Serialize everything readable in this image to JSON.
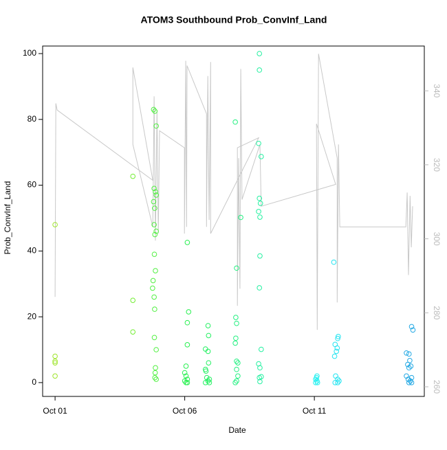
{
  "chart_data": {
    "type": "scatter",
    "title": "ATOM3 Southbound Prob_ConvInf_Land",
    "xlabel": "Date",
    "ylabel": "Prob_ConvInf_Land",
    "xlim": [
      0.52,
      15.24
    ],
    "xticks": [
      {
        "value": 1,
        "label": "Oct 01"
      },
      {
        "value": 6,
        "label": "Oct 06"
      },
      {
        "value": 11,
        "label": "Oct 11"
      }
    ],
    "ylim": [
      -4.2,
      102.3
    ],
    "yticks": [
      0,
      20,
      40,
      60,
      80,
      100
    ],
    "y2lim": [
      257.4,
      352.1
    ],
    "y2ticks": [
      260,
      280,
      300,
      320,
      340
    ],
    "series": [
      {
        "type": "line",
        "axis": "y2",
        "color": "#c8c8c8",
        "x": [
          1.0,
          1.03,
          1.08,
          4.77,
          4.0,
          4.0,
          4.77,
          4.82,
          4.87,
          4.93,
          4.98,
          5.03,
          5.99,
          5.99,
          6.04,
          6.07,
          6.09,
          6.84,
          6.84,
          6.89,
          6.94,
          7.0,
          7.0,
          8.85,
          8.03,
          8.03,
          8.08,
          8.13,
          8.16,
          8.21,
          8.9,
          8.95,
          11.82,
          11.08,
          11.11,
          11.16,
          11.88,
          11.88,
          11.93,
          11.98,
          14.53,
          14.58,
          14.63,
          14.69,
          14.74,
          14.79
        ],
        "values": [
          284.3,
          336.6,
          334.8,
          315.8,
          346.3,
          325.5,
          303.2,
          338.5,
          299.5,
          334.8,
          301.4,
          329.2,
          324.6,
          301.4,
          348.1,
          303.2,
          346.8,
          333.8,
          303.2,
          344.0,
          305.1,
          347.8,
          301.4,
          327.3,
          324.6,
          281.9,
          321.8,
          286.5,
          345.9,
          310.6,
          325.5,
          308.8,
          314.7,
          331.1,
          275.4,
          350.0,
          321.8,
          282.8,
          325.5,
          303.2,
          303.2,
          312.5,
          290.2,
          311.6,
          297.7,
          308.8
        ]
      },
      {
        "type": "scatter",
        "color": "#9ee52a",
        "x": [
          1.0,
          1.0,
          1.0,
          1.0,
          1.0
        ],
        "values": [
          48,
          8,
          6,
          6.5,
          2
        ]
      },
      {
        "type": "scatter",
        "color": "#72ee32",
        "x": [
          4.0,
          4.0,
          4.0
        ],
        "values": [
          62.7,
          25,
          15.4
        ]
      },
      {
        "type": "scatter",
        "color": "#50f040",
        "x": [
          4.8,
          4.85,
          4.9,
          4.82,
          4.87,
          4.9,
          4.8,
          4.84,
          4.82,
          4.9,
          4.85,
          4.83,
          4.87,
          4.78,
          4.76,
          4.82,
          4.84,
          4.83,
          4.9,
          4.87,
          4.86,
          4.85,
          4.9
        ],
        "values": [
          83,
          82.5,
          78,
          59,
          58,
          57,
          55,
          53,
          48,
          46,
          45,
          39,
          34,
          31,
          28.7,
          26,
          22.3,
          13.7,
          10,
          4.5,
          3,
          1.5,
          1
        ]
      },
      {
        "type": "scatter",
        "color": "#28f050",
        "x": [
          6.1,
          6.15,
          6.1,
          6.1,
          6.05,
          6.0,
          6.05,
          6.1,
          6.0,
          6.05,
          6.1
        ],
        "values": [
          42.6,
          21.5,
          18.2,
          11.5,
          5,
          3,
          2,
          1,
          0.5,
          0,
          0
        ]
      },
      {
        "type": "scatter",
        "color": "#22f060",
        "x": [
          6.9,
          6.92,
          6.8,
          6.9,
          6.92,
          6.8,
          6.82,
          6.85,
          6.95,
          6.9,
          6.8,
          6.95
        ],
        "values": [
          17.3,
          14.3,
          10.2,
          9.5,
          6,
          4,
          3.5,
          1.5,
          1,
          0.5,
          0,
          0
        ]
      },
      {
        "type": "scatter",
        "color": "#22f080",
        "x": [
          7.95,
          8.0,
          7.97,
          8.0,
          7.97,
          7.95,
          8.0,
          8.05,
          8.0,
          8.05,
          8.0,
          7.95,
          8.16
        ],
        "values": [
          79.2,
          34.8,
          19.8,
          18,
          13.5,
          12,
          6.5,
          6,
          4,
          2,
          0.5,
          0,
          50.2
        ]
      },
      {
        "type": "scatter",
        "color": "#22f0a0",
        "x": [
          8.88,
          8.88,
          8.85,
          8.95,
          8.88,
          8.92,
          8.85,
          8.9,
          8.9,
          8.88,
          8.95,
          8.85,
          8.9,
          8.95,
          8.88,
          8.9
        ],
        "values": [
          100,
          95,
          72.7,
          68.7,
          56,
          54.5,
          52,
          50.3,
          38.5,
          28.8,
          10.1,
          5.7,
          4.5,
          1.8,
          1.5,
          0.3
        ]
      },
      {
        "type": "scatter",
        "color": "#22f0f0",
        "x": [
          11.1,
          11.08,
          11.05,
          11.1,
          11.05,
          11.12
        ],
        "values": [
          2,
          1.5,
          1,
          0.5,
          0,
          0
        ]
      },
      {
        "type": "scatter",
        "color": "#22e4f0",
        "x": [
          11.75,
          11.92,
          11.9,
          11.8,
          11.88,
          11.85,
          11.78,
          11.82,
          11.9,
          11.95,
          11.8,
          11.9
        ],
        "values": [
          36.6,
          14,
          13.4,
          11.6,
          10.5,
          9.5,
          8,
          2,
          1,
          0.5,
          0,
          0
        ]
      },
      {
        "type": "scatter",
        "color": "#22a8e4",
        "x": [
          14.75,
          14.8,
          14.55,
          14.65,
          14.68,
          14.6,
          14.72,
          14.65,
          14.55,
          14.75,
          14.62,
          14.7,
          14.65,
          14.75
        ],
        "values": [
          17,
          16,
          9,
          8.7,
          6.7,
          5.5,
          5,
          4.5,
          2,
          1.5,
          1,
          0.5,
          0,
          0
        ]
      }
    ]
  }
}
